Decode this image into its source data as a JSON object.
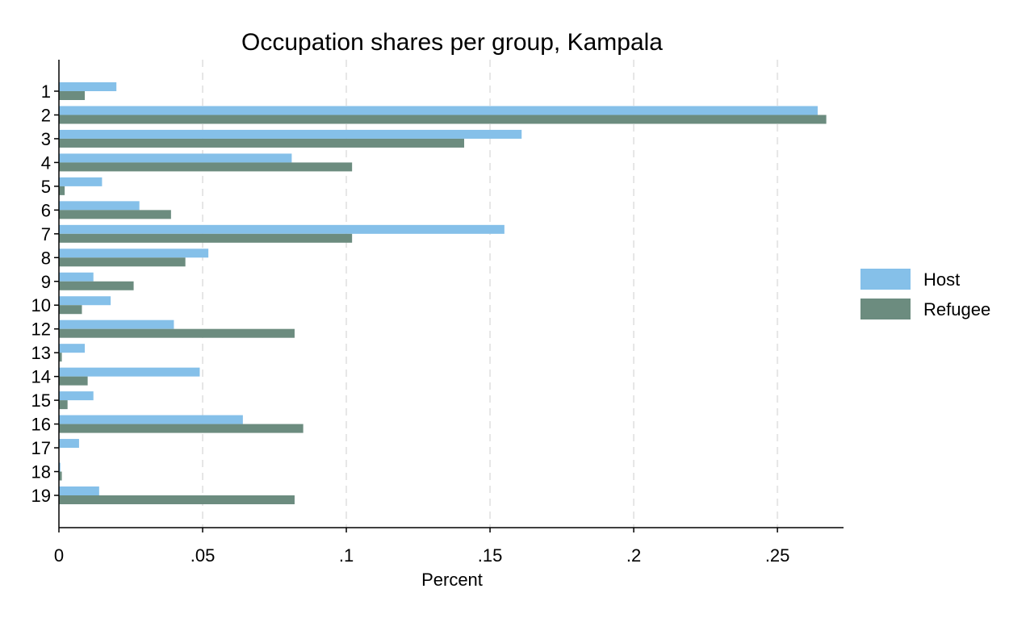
{
  "chart_data": {
    "type": "bar",
    "orientation": "horizontal",
    "title": "Occupation shares per group, Kampala",
    "xlabel": "Percent",
    "ylabel": "",
    "xlim": [
      0,
      0.273
    ],
    "xticks": [
      0,
      0.05,
      0.1,
      0.15,
      0.2,
      0.25
    ],
    "xtick_labels": [
      "0",
      ".05",
      ".1",
      ".15",
      ".2",
      ".25"
    ],
    "grid": true,
    "legend_position": "right",
    "categories": [
      "1",
      "2",
      "3",
      "4",
      "5",
      "6",
      "7",
      "8",
      "9",
      "10",
      "12",
      "13",
      "14",
      "15",
      "16",
      "17",
      "18",
      "19"
    ],
    "series": [
      {
        "name": "Host",
        "color": "#85c0e9",
        "values": [
          0.02,
          0.264,
          0.161,
          0.081,
          0.015,
          0.028,
          0.155,
          0.052,
          0.012,
          0.018,
          0.04,
          0.009,
          0.049,
          0.012,
          0.064,
          0.007,
          0.0005,
          0.014
        ]
      },
      {
        "name": "Refugee",
        "color": "#6c8c7f",
        "values": [
          0.009,
          0.267,
          0.141,
          0.102,
          0.002,
          0.039,
          0.102,
          0.044,
          0.026,
          0.008,
          0.082,
          0.001,
          0.01,
          0.003,
          0.085,
          0.0,
          0.001,
          0.082
        ]
      }
    ]
  }
}
